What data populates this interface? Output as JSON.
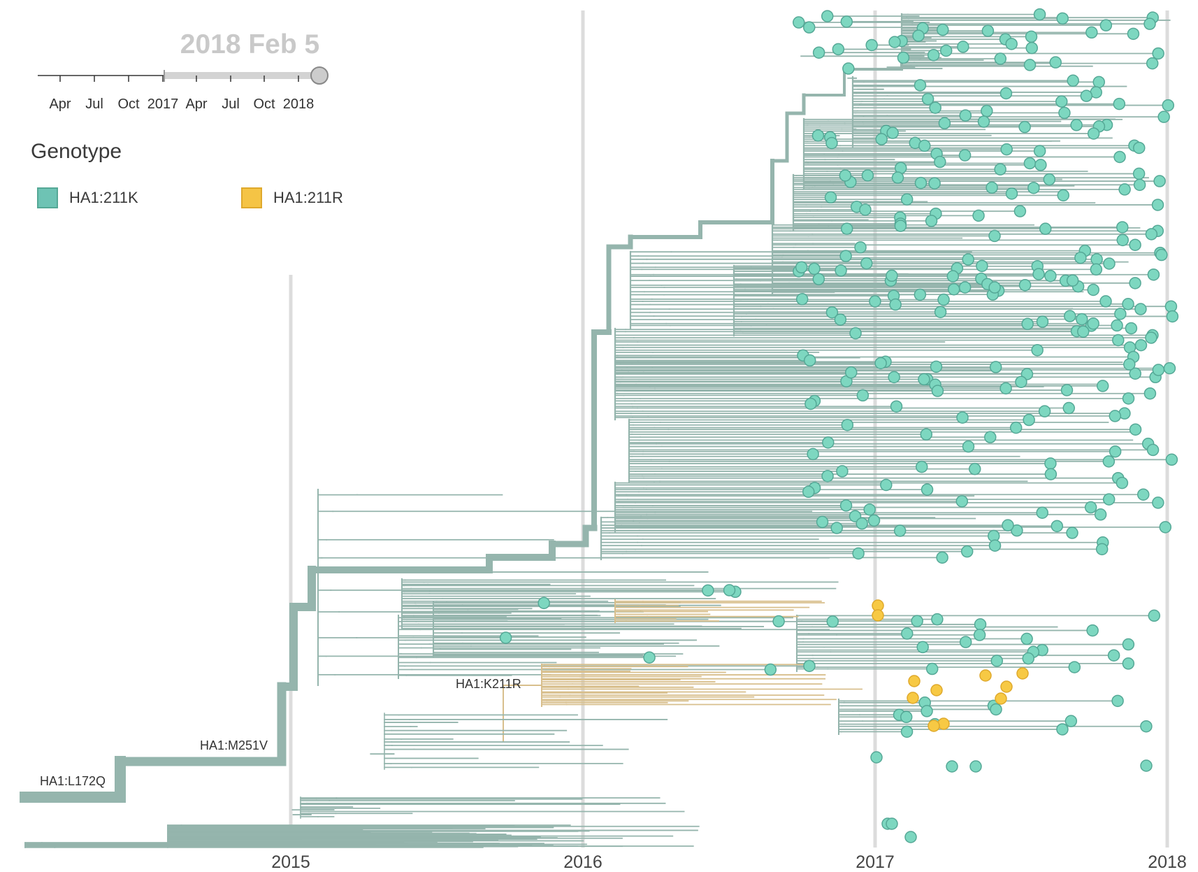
{
  "time_slider": {
    "current_date": "2018 Feb 5",
    "tick_labels": [
      "Apr",
      "Jul",
      "Oct",
      "2017",
      "Apr",
      "Jul",
      "Oct",
      "2018"
    ],
    "selected_fraction": 1.0
  },
  "legend": {
    "title": "Genotype",
    "items": [
      {
        "label": "HA1:211K",
        "color": "#6ec3b4"
      },
      {
        "label": "HA1:211R",
        "color": "#f5c445"
      }
    ]
  },
  "colors": {
    "branch_k": "#95b5ad",
    "tip_k_fill": "#7dd7c0",
    "tip_k_stroke": "#55a896",
    "branch_r": "#d8bf8d",
    "tip_r_fill": "#f7c944",
    "tip_r_stroke": "#dfa92c",
    "gridline": "#dcdcdc"
  },
  "axis": {
    "years": [
      "2015",
      "2016",
      "2017",
      "2018"
    ]
  },
  "mutations": [
    {
      "label": "HA1:L172Q"
    },
    {
      "label": "HA1:M251V"
    },
    {
      "label": "HA1:K211R"
    }
  ]
}
